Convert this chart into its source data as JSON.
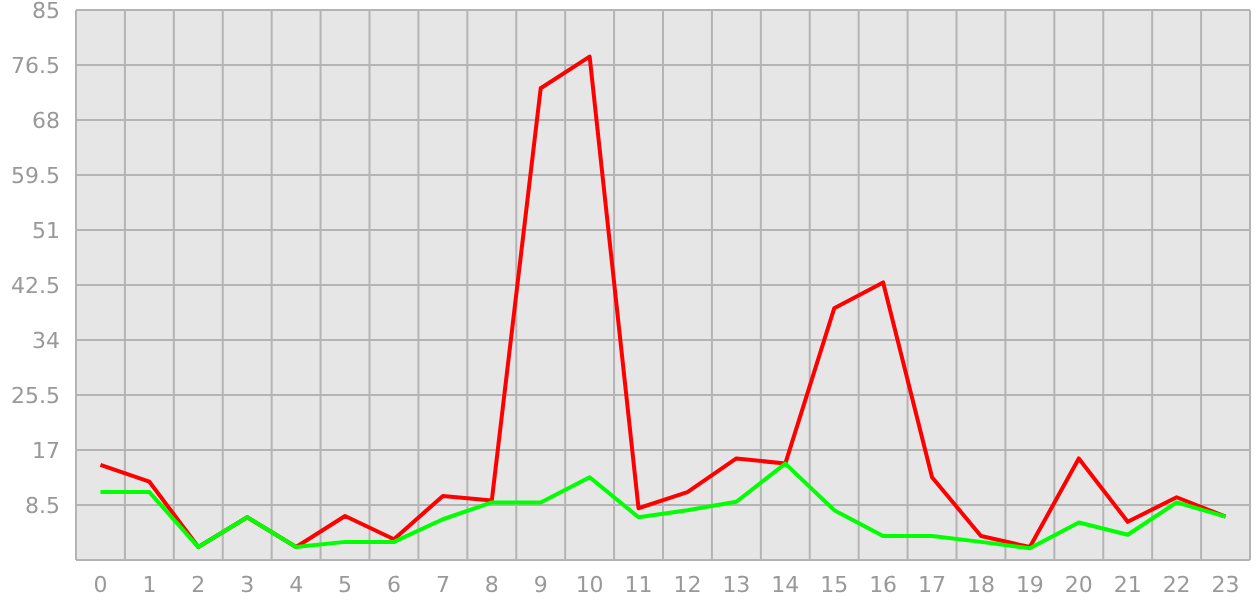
{
  "chart_data": {
    "type": "line",
    "x": [
      0,
      1,
      2,
      3,
      4,
      5,
      6,
      7,
      8,
      9,
      10,
      11,
      12,
      13,
      14,
      15,
      16,
      17,
      18,
      19,
      20,
      21,
      22,
      23
    ],
    "series": [
      {
        "color": "#ff0000",
        "values": [
          14.7,
          12.1,
          2.0,
          6.6,
          2.0,
          6.8,
          3.2,
          9.9,
          9.2,
          72.9,
          77.8,
          8.0,
          10.5,
          15.7,
          14.9,
          38.9,
          42.9,
          12.8,
          3.7,
          2.0,
          15.7,
          5.9,
          9.7,
          6.7
        ]
      },
      {
        "color": "#00ff00",
        "values": [
          10.5,
          10.5,
          2.0,
          6.6,
          2.0,
          2.8,
          2.8,
          6.3,
          8.9,
          8.9,
          12.8,
          6.6,
          7.7,
          9.0,
          14.9,
          7.7,
          3.7,
          3.7,
          2.8,
          1.8,
          5.8,
          3.9,
          8.9,
          6.7
        ]
      }
    ],
    "xlim": [
      -0.5,
      23.5
    ],
    "xticks": [
      0,
      1,
      2,
      3,
      4,
      5,
      6,
      7,
      8,
      9,
      10,
      11,
      12,
      13,
      14,
      15,
      16,
      17,
      18,
      19,
      20,
      21,
      22,
      23
    ],
    "ylim": [
      0,
      85
    ],
    "yticks": [
      8.5,
      17,
      25.5,
      34,
      42.5,
      51,
      59.5,
      68,
      76.5,
      85
    ],
    "grid": true,
    "legend": false,
    "marker": "none",
    "line_style": "solid"
  }
}
